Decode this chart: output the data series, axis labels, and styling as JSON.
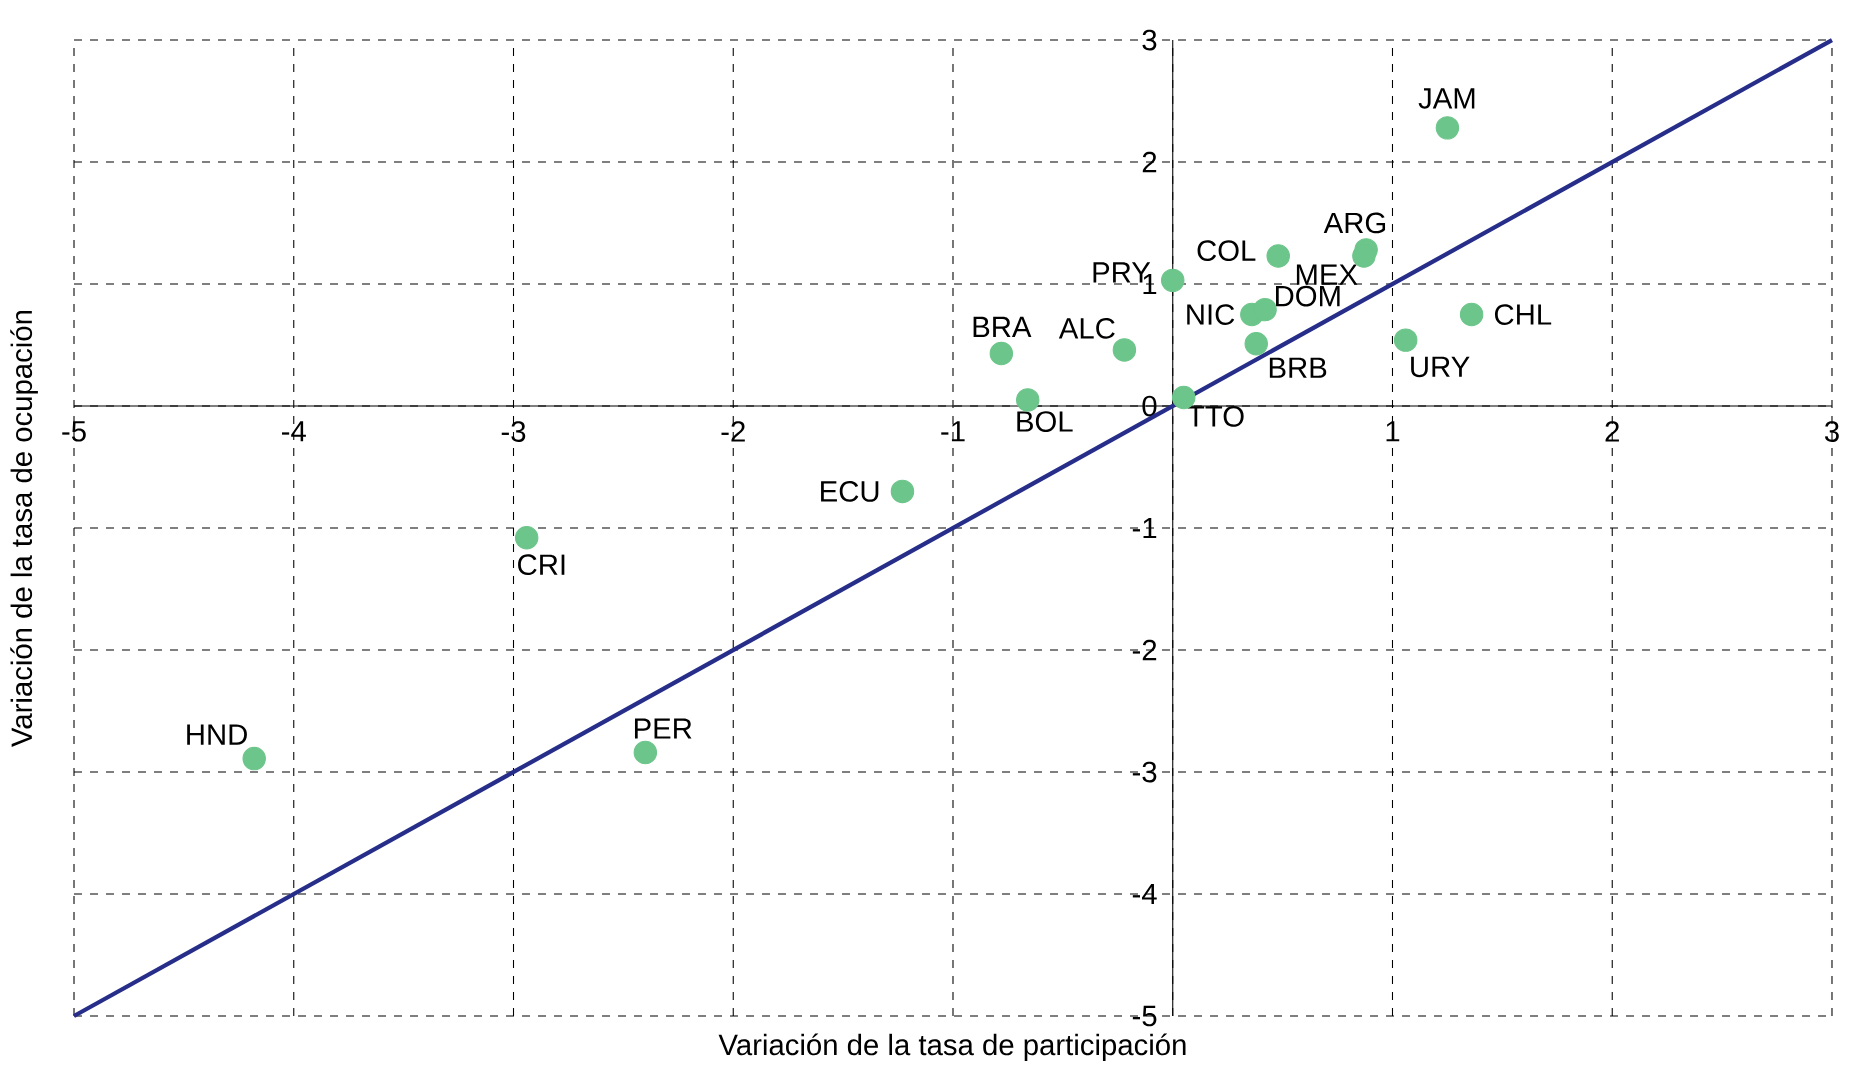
{
  "chart_data": {
    "type": "scatter",
    "xlabel": "Variación de la tasa de participación",
    "ylabel": "Variación de la tasa de ocupación",
    "xlim": [
      -5,
      3
    ],
    "ylim": [
      -5,
      3
    ],
    "xticks": [
      -5,
      -4,
      -3,
      -2,
      -1,
      {
        "value": 0,
        "label": null
      },
      1,
      2,
      3
    ],
    "yticks": [
      -5,
      -4,
      -3,
      -2,
      -1,
      0,
      1,
      2,
      3
    ],
    "grid": true,
    "series": [
      {
        "marker": "circle",
        "color": "#6cc58a",
        "x": [
          1.25,
          0.88,
          0.87,
          0.48,
          0.0,
          0.36,
          0.42,
          0.38,
          1.36,
          1.06,
          -0.22,
          -0.78,
          -0.66,
          0.05,
          -1.23,
          -2.94,
          -2.4,
          -4.18
        ],
        "values": [
          2.28,
          1.28,
          1.23,
          1.23,
          1.03,
          0.75,
          0.79,
          0.51,
          0.75,
          0.54,
          0.46,
          0.43,
          0.05,
          0.07,
          -0.7,
          -1.08,
          -2.84,
          -2.89
        ]
      },
      {
        "type": "line",
        "marker": "none",
        "color": "#262e8a",
        "x": [
          -5,
          3
        ],
        "values": [
          -5,
          3
        ]
      }
    ],
    "annotations": [
      {
        "text": "JAM",
        "x": 1.25,
        "y": 2.28
      },
      {
        "text": "ARG",
        "x": 0.88,
        "y": 1.28
      },
      {
        "text": "MEX",
        "x": 0.87,
        "y": 1.23
      },
      {
        "text": "COL",
        "x": 0.48,
        "y": 1.23
      },
      {
        "text": "PRY",
        "x": 0.0,
        "y": 1.03
      },
      {
        "text": "NIC",
        "x": 0.36,
        "y": 0.75
      },
      {
        "text": "DOM",
        "x": 0.42,
        "y": 0.79
      },
      {
        "text": "BRB",
        "x": 0.38,
        "y": 0.51
      },
      {
        "text": "CHL",
        "x": 1.36,
        "y": 0.75
      },
      {
        "text": "URY",
        "x": 1.06,
        "y": 0.54
      },
      {
        "text": "ALC",
        "x": -0.22,
        "y": 0.46
      },
      {
        "text": "BRA",
        "x": -0.78,
        "y": 0.43
      },
      {
        "text": "BOL",
        "x": -0.66,
        "y": 0.05
      },
      {
        "text": "TTO",
        "x": 0.05,
        "y": 0.07
      },
      {
        "text": "ECU",
        "x": -1.23,
        "y": -0.7
      },
      {
        "text": "CRI",
        "x": -2.94,
        "y": -1.08
      },
      {
        "text": "PER",
        "x": -2.4,
        "y": -2.84
      },
      {
        "text": "HND",
        "x": -4.18,
        "y": -2.89
      }
    ]
  }
}
